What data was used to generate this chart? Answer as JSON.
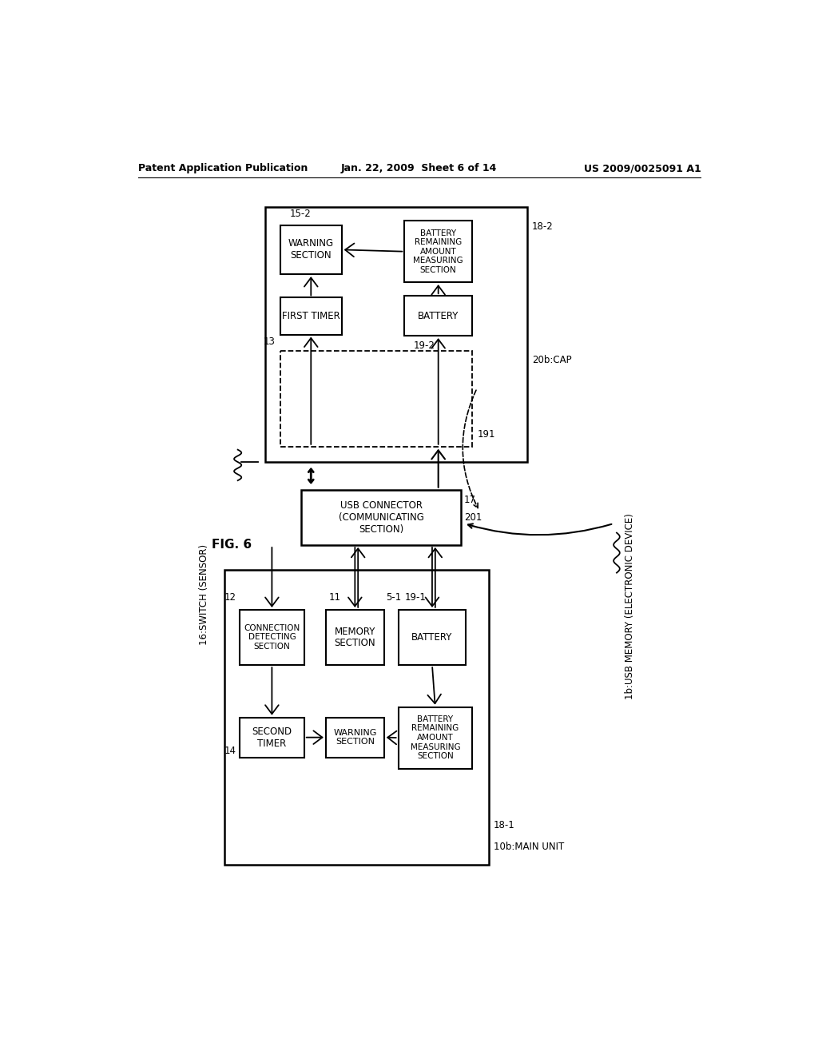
{
  "title_left": "Patent Application Publication",
  "title_center": "Jan. 22, 2009  Sheet 6 of 14",
  "title_right": "US 2009/0025091 A1",
  "background": "#ffffff"
}
